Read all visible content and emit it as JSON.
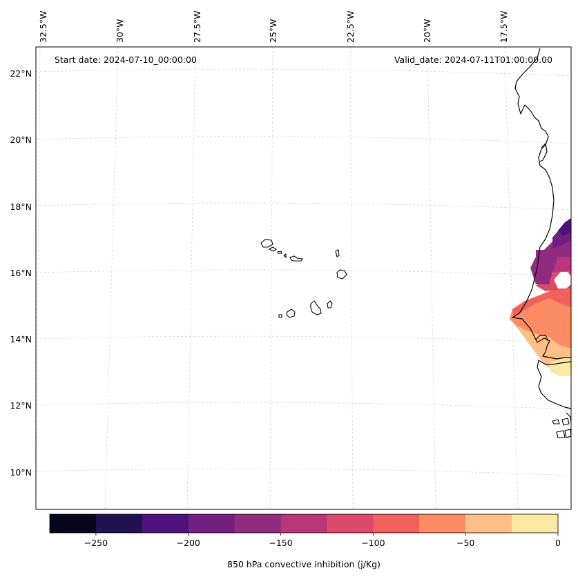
{
  "header": {
    "start_date": "Start date: 2024-07-10_00:00:00",
    "valid_date": "Valid_date: 2024-07-11T01:00:00.00"
  },
  "longitude_labels": [
    "32.5°W",
    "30°W",
    "27.5°W",
    "25°W",
    "22.5°W",
    "20°W",
    "17.5°W"
  ],
  "latitude_labels": [
    "22°N",
    "20°N",
    "18°N",
    "16°N",
    "14°N",
    "12°N",
    "10°N"
  ],
  "colorbar": {
    "label": "850 hPa convective inhibition (j/Kg)",
    "ticks": [
      "−250",
      "−200",
      "−150",
      "−100",
      "−50",
      "0"
    ],
    "levels": [
      -275,
      -250,
      -225,
      -200,
      -175,
      -150,
      -125,
      -100,
      -75,
      -50,
      -25,
      0
    ],
    "colors": [
      "#08061e",
      "#221150",
      "#4e117b",
      "#721f81",
      "#912b80",
      "#b73779",
      "#dc4a6a",
      "#f1615c",
      "#fc8c63",
      "#fec087",
      "#fde9a6"
    ]
  },
  "colors": {
    "coastline": "#000000",
    "gridline": "#cfcfcf"
  }
}
